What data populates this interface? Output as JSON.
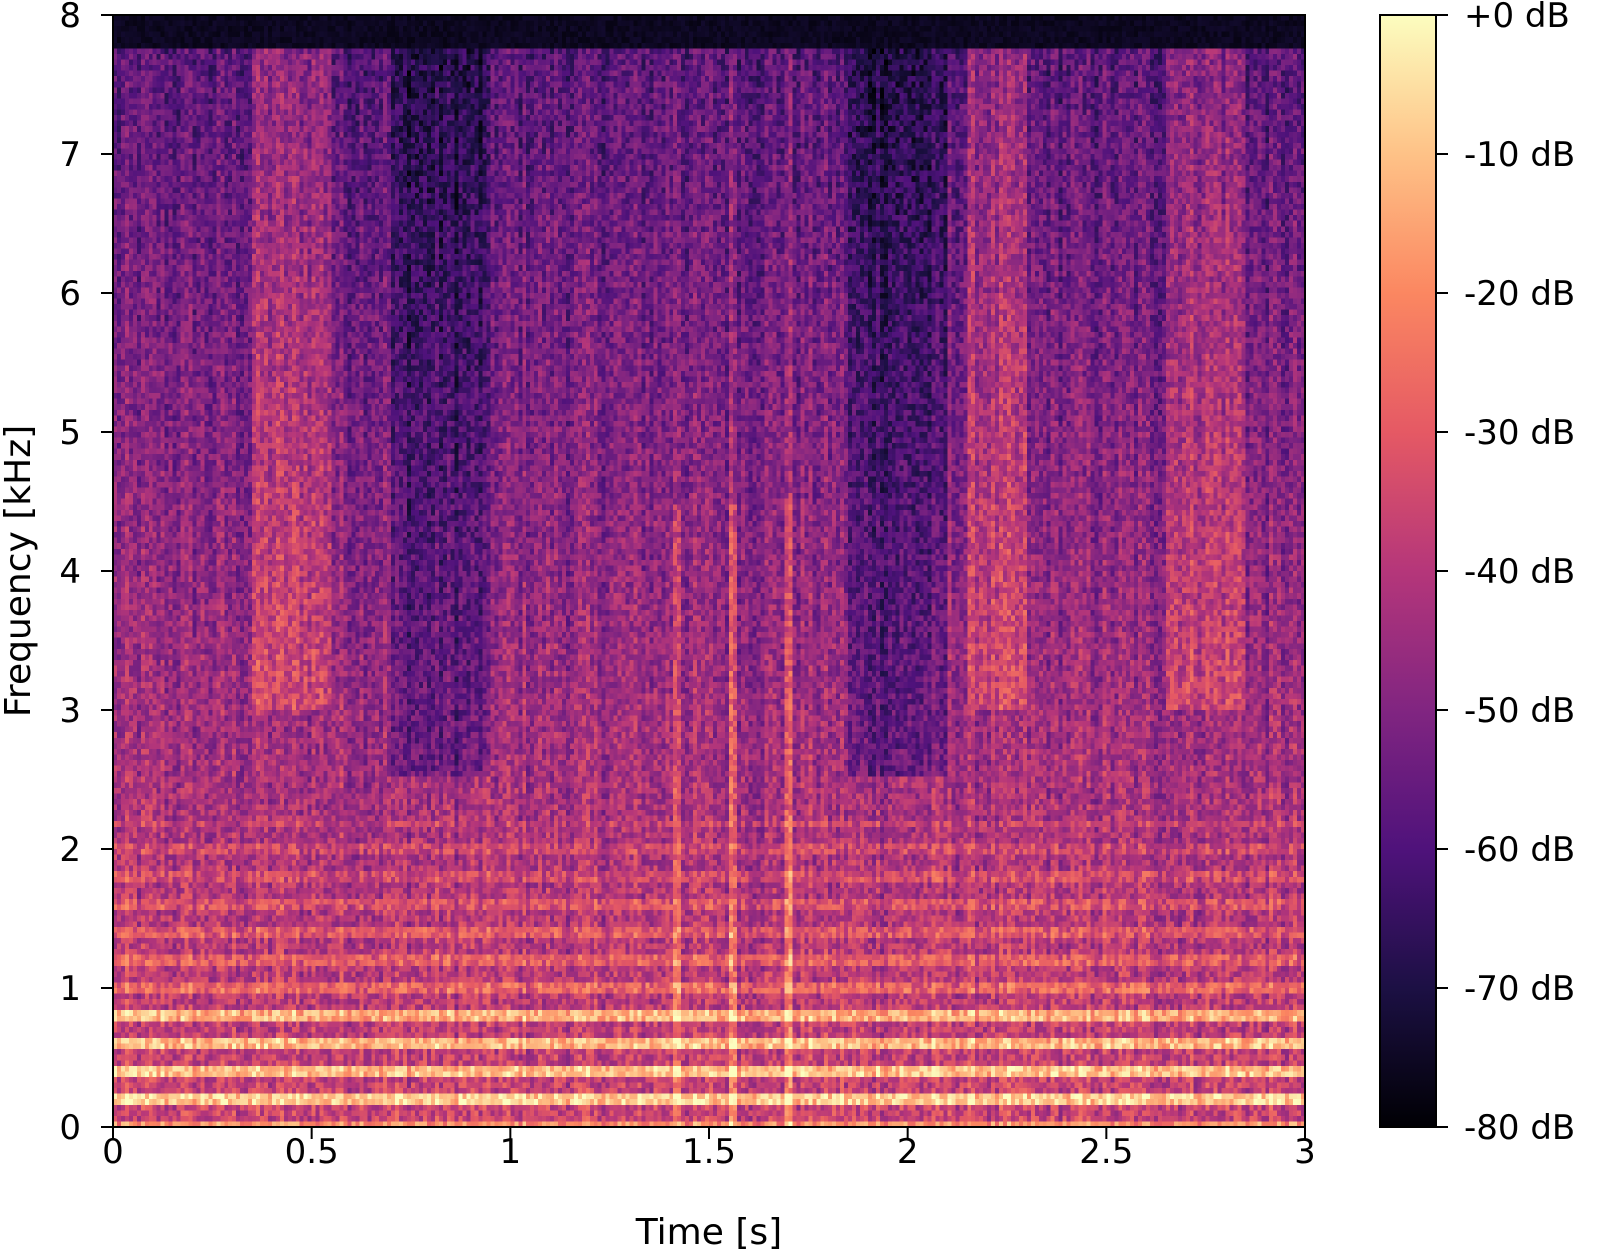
{
  "chart_data": {
    "type": "heatmap",
    "subtype": "spectrogram",
    "title": "",
    "xlabel": "Time [s]",
    "ylabel": "Frequency [kHz]",
    "xlim": [
      0,
      3
    ],
    "ylim": [
      0,
      8
    ],
    "x_ticks": [
      0,
      0.5,
      1,
      1.5,
      2,
      2.5,
      3
    ],
    "x_tick_labels": [
      "0",
      "0.5",
      "1",
      "1.5",
      "2",
      "2.5",
      "3"
    ],
    "y_ticks": [
      0,
      1,
      2,
      3,
      4,
      5,
      6,
      7,
      8
    ],
    "y_tick_labels": [
      "0",
      "1",
      "2",
      "3",
      "4",
      "5",
      "6",
      "7",
      "8"
    ],
    "colormap": "magma",
    "colorbar": {
      "range": [
        -80,
        0
      ],
      "ticks": [
        0,
        -10,
        -20,
        -30,
        -40,
        -50,
        -60,
        -70,
        -80
      ],
      "tick_labels": [
        "+0 dB",
        "-10 dB",
        "-20 dB",
        "-30 dB",
        "-40 dB",
        "-50 dB",
        "-60 dB",
        "-70 dB",
        "-80 dB"
      ]
    },
    "grid": false,
    "legend": "none",
    "features": {
      "low_harmonics_khz": [
        0.2,
        0.4,
        0.6,
        0.8
      ],
      "broadband_bursts_s": [
        1.42,
        1.56,
        1.7
      ],
      "high_band_energy_s": [
        [
          0.35,
          0.55
        ],
        [
          2.15,
          2.3
        ],
        [
          2.65,
          2.85
        ]
      ],
      "quiet_regions_s": [
        [
          0.7,
          0.95
        ],
        [
          1.85,
          2.1
        ]
      ]
    }
  }
}
